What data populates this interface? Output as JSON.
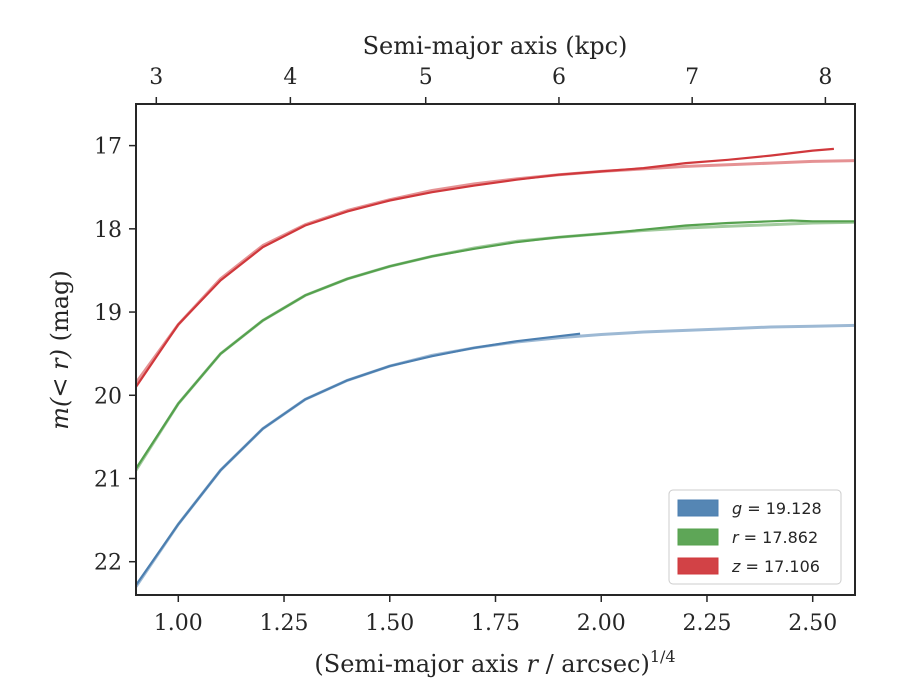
{
  "chart_data": {
    "type": "line",
    "xlabel": "(Semi-major axis ",
    "xlabel_var": "r",
    "xlabel_tail": " / arcsec)",
    "xlabel_sup": "1/4",
    "top_xlabel": "Semi-major axis (kpc)",
    "ylabel_var": "m(< r)",
    "ylabel_tail": " (mag)",
    "xlim": [
      0.9,
      2.6
    ],
    "ylim": [
      22.4,
      16.5
    ],
    "y_inverted": true,
    "x_ticks": [
      1.0,
      1.25,
      1.5,
      1.75,
      2.0,
      2.25,
      2.5
    ],
    "x_tick_labels": [
      "1.00",
      "1.25",
      "1.50",
      "1.75",
      "2.00",
      "2.25",
      "2.50"
    ],
    "y_ticks": [
      17,
      18,
      19,
      20,
      21,
      22
    ],
    "y_tick_labels": [
      "17",
      "18",
      "19",
      "20",
      "21",
      "22"
    ],
    "top_ticks_x": [
      0.948,
      1.265,
      1.585,
      1.9,
      2.215,
      2.53
    ],
    "top_tick_labels": [
      "3",
      "4",
      "5",
      "6",
      "7",
      "8"
    ],
    "legend_position": "lower-right",
    "series": [
      {
        "name": "g = 19.128",
        "label_var": "g",
        "label_value": "= 19.128",
        "color": "#4c7fb0",
        "model": {
          "x": [
            0.9,
            1.0,
            1.1,
            1.2,
            1.3,
            1.4,
            1.5,
            1.6,
            1.7,
            1.8,
            1.9,
            2.0,
            2.1,
            2.2,
            2.3,
            2.4,
            2.5,
            2.6
          ],
          "y": [
            22.3,
            21.55,
            20.9,
            20.4,
            20.05,
            19.82,
            19.65,
            19.52,
            19.43,
            19.36,
            19.31,
            19.27,
            19.24,
            19.22,
            19.2,
            19.18,
            19.17,
            19.16
          ]
        },
        "data": {
          "x": [
            0.9,
            1.0,
            1.1,
            1.2,
            1.3,
            1.4,
            1.5,
            1.6,
            1.7,
            1.8,
            1.9,
            1.95
          ],
          "y": [
            22.28,
            21.55,
            20.9,
            20.4,
            20.05,
            19.82,
            19.65,
            19.53,
            19.43,
            19.35,
            19.29,
            19.26
          ]
        }
      },
      {
        "name": "r = 17.862",
        "label_var": "r",
        "label_value": "= 17.862",
        "color": "#55a14e",
        "model": {
          "x": [
            0.9,
            1.0,
            1.1,
            1.2,
            1.3,
            1.4,
            1.5,
            1.6,
            1.7,
            1.8,
            1.9,
            2.0,
            2.1,
            2.2,
            2.3,
            2.4,
            2.5,
            2.6
          ],
          "y": [
            20.9,
            20.1,
            19.5,
            19.1,
            18.8,
            18.6,
            18.45,
            18.33,
            18.23,
            18.15,
            18.1,
            18.06,
            18.02,
            17.99,
            17.97,
            17.95,
            17.93,
            17.92
          ]
        },
        "data": {
          "x": [
            0.9,
            1.0,
            1.1,
            1.2,
            1.3,
            1.4,
            1.5,
            1.6,
            1.7,
            1.8,
            1.9,
            2.0,
            2.1,
            2.2,
            2.3,
            2.4,
            2.45,
            2.5,
            2.6
          ],
          "y": [
            20.88,
            20.1,
            19.5,
            19.1,
            18.8,
            18.6,
            18.45,
            18.33,
            18.24,
            18.16,
            18.1,
            18.06,
            18.01,
            17.96,
            17.93,
            17.91,
            17.9,
            17.91,
            17.91
          ]
        }
      },
      {
        "name": "z = 17.106",
        "label_var": "z",
        "label_value": "= 17.106",
        "color": "#d0383c",
        "model": {
          "x": [
            0.9,
            1.0,
            1.1,
            1.2,
            1.3,
            1.4,
            1.5,
            1.6,
            1.7,
            1.8,
            1.9,
            2.0,
            2.1,
            2.2,
            2.3,
            2.4,
            2.5,
            2.6
          ],
          "y": [
            19.85,
            19.15,
            18.6,
            18.2,
            17.95,
            17.78,
            17.65,
            17.54,
            17.46,
            17.4,
            17.35,
            17.31,
            17.28,
            17.25,
            17.23,
            17.21,
            17.19,
            17.18
          ]
        },
        "data": {
          "x": [
            0.9,
            1.0,
            1.1,
            1.2,
            1.3,
            1.4,
            1.5,
            1.6,
            1.7,
            1.8,
            1.9,
            2.0,
            2.1,
            2.2,
            2.3,
            2.4,
            2.5,
            2.55
          ],
          "y": [
            19.9,
            19.15,
            18.62,
            18.22,
            17.96,
            17.79,
            17.66,
            17.56,
            17.48,
            17.41,
            17.35,
            17.31,
            17.27,
            17.21,
            17.17,
            17.12,
            17.06,
            17.04
          ]
        }
      }
    ]
  }
}
